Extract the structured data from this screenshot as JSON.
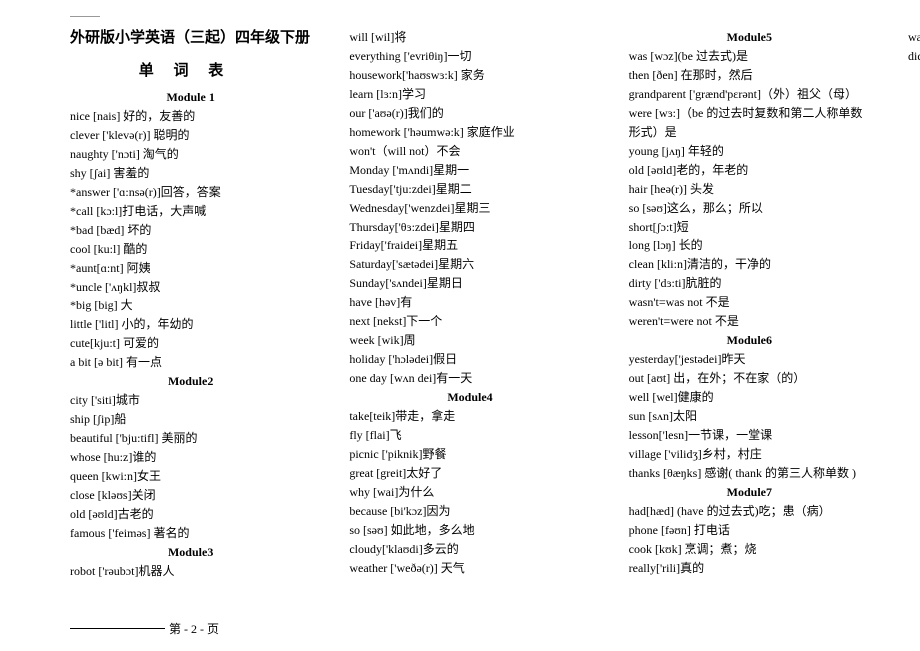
{
  "title": "外研版小学英语（三起）四年级下册",
  "subtitle": "单 词 表",
  "footer": "第 - 2 - 页",
  "modules": [
    {
      "name": "Module 1",
      "entries": [
        "nice [nais]  好的，友善的",
        "clever ['klevə(r)]  聪明的",
        "naughty ['nɔti]  淘气的",
        "shy [ʃai]  害羞的",
        "*answer ['ɑ:nsə(r)]回答，答案",
        "*call [kɔ:l]打电话，大声喊",
        "*bad [bæd]  坏的",
        "cool [ku:l]  酷的",
        "*aunt[ɑ:nt]  阿姨",
        "*uncle ['ʌŋkl]叔叔",
        "*big [big]  大",
        "little ['litl]  小的，年幼的",
        "cute[kju:t]  可爱的",
        "a bit [ə bit]  有一点"
      ]
    },
    {
      "name": "Module2",
      "entries": [
        "city ['siti]城市",
        "ship [ʃip]船",
        "beautiful ['bju:tifl]  美丽的",
        "whose [hu:z]谁的",
        "queen [kwi:n]女王",
        "close [kləʊs]关闭",
        "old [əʊld]古老的",
        "famous ['feiməs]  著名的"
      ]
    },
    {
      "name": "Module3",
      "entries": [
        "robot ['rəubɔt]机器人",
        "will [wil]将",
        "everything ['evriθiŋ]一切",
        "housework['haʊswɜ:k]  家务",
        "learn [lɜ:n]学习",
        "our ['aʊə(r)]我们的",
        "homework ['həumwə:k]  家庭作业",
        "won't（will not）不会",
        "Monday ['mʌndi]星期一",
        "Tuesday['tju:zdei]星期二",
        "Wednesday['wenzdei]星期三",
        "Thursday['θɜ:zdei]星期四",
        "Friday['fraidei]星期五",
        "Saturday['sætədei]星期六",
        "Sunday['sʌndei]星期日",
        "have [həv]有",
        "next [nekst]下一个",
        "week [wik]周",
        "holiday ['hɔlədei]假日",
        "one day [wʌn dei]有一天"
      ]
    },
    {
      "name": "Module4",
      "entries": [
        "take[teik]带走，拿走",
        "fly [flai]飞",
        "picnic ['piknik]野餐",
        "great [greit]太好了",
        "why [wai]为什么",
        "because [bi'kɔz]因为",
        "so [səʊ]  如此地，多么地",
        "cloudy['klaʊdi]多云的",
        "weather ['weðə(r)]  天气"
      ]
    },
    {
      "name": "Module5",
      "entries": [
        "was [wɔz](be 过去式)是",
        "then [ðen]  在那时，然后",
        "grandparent ['grænd'pɛrənt]（外）祖父（母）",
        "were [wɜ:]（be 的过去时复数和第二人称单数形式）是",
        "young [jʌŋ]  年轻的",
        "old [əʊld]老的，年老的",
        "hair [heə(r)]  头发",
        "so [səʊ]这么，那么；所以",
        "short[ʃɔ:t]短",
        "long [lɔŋ]  长的",
        "clean [kli:n]清洁的，干净的",
        "dirty ['dɜ:ti]肮脏的",
        "wasn't=was not 不是",
        "weren't=were not 不是"
      ]
    },
    {
      "name": "Module6",
      "entries": [
        "yesterday['jestədei]昨天",
        "out [aʊt]  出，在外；不在家（的）",
        "well [wel]健康的",
        "sun [sʌn]太阳",
        "lesson['lesn]一节课，一堂课",
        "village ['vilidʒ]乡村，村庄",
        "thanks [θæŋks]  感谢( thank 的第三人称单数  )"
      ]
    },
    {
      "name": "Module7",
      "entries": [
        "had[hæd] (have 的过去式)吃；患（病）",
        "phone [fəʊn]  打电话",
        "cook [kʊk]  烹调；煮；烧",
        "really['rili]真的",
        "wash [wɔʃ]洗",
        "did [did]  做( do 的过去式)"
      ]
    }
  ]
}
